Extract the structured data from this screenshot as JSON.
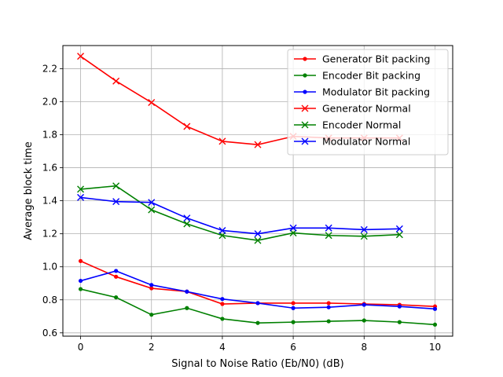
{
  "chart_data": {
    "type": "line",
    "title": "",
    "xlabel": "Signal to Noise Ratio (Eb/N0) (dB)",
    "ylabel": "Average block time",
    "xlim": [
      -0.5,
      10.5
    ],
    "ylim": [
      0.58,
      2.34
    ],
    "xticks": [
      0,
      2,
      4,
      6,
      8,
      10
    ],
    "yticks": [
      0.6,
      0.8,
      1.0,
      1.2,
      1.4,
      1.6,
      1.8,
      2.0,
      2.2
    ],
    "grid": true,
    "legend_position": "top-right",
    "series": [
      {
        "name": "Generator Bit packing",
        "color": "#ff0000",
        "marker": "dot",
        "x": [
          0,
          1,
          2,
          3,
          4,
          5,
          6,
          7,
          8,
          9,
          10
        ],
        "y": [
          1.035,
          0.94,
          0.87,
          0.85,
          0.775,
          0.78,
          0.78,
          0.78,
          0.775,
          0.77,
          0.76
        ]
      },
      {
        "name": "Encoder Bit packing",
        "color": "#008000",
        "marker": "dot",
        "x": [
          0,
          1,
          2,
          3,
          4,
          5,
          6,
          7,
          8,
          9,
          10
        ],
        "y": [
          0.865,
          0.815,
          0.71,
          0.75,
          0.685,
          0.66,
          0.665,
          0.67,
          0.675,
          0.665,
          0.65
        ]
      },
      {
        "name": "Modulator Bit packing",
        "color": "#0000ff",
        "marker": "dot",
        "x": [
          0,
          1,
          2,
          3,
          4,
          5,
          6,
          7,
          8,
          9,
          10
        ],
        "y": [
          0.915,
          0.975,
          0.89,
          0.85,
          0.805,
          0.78,
          0.75,
          0.755,
          0.77,
          0.76,
          0.745
        ]
      },
      {
        "name": "Generator Normal",
        "color": "#ff0000",
        "marker": "x",
        "x": [
          0,
          1,
          2,
          3,
          4,
          5,
          6,
          7,
          8,
          9
        ],
        "y": [
          2.275,
          2.125,
          1.995,
          1.85,
          1.76,
          1.74,
          1.79,
          1.78,
          1.78,
          1.78
        ]
      },
      {
        "name": "Encoder Normal",
        "color": "#008000",
        "marker": "x",
        "x": [
          0,
          1,
          2,
          3,
          4,
          5,
          6,
          7,
          8,
          9
        ],
        "y": [
          1.47,
          1.49,
          1.345,
          1.26,
          1.19,
          1.16,
          1.205,
          1.19,
          1.185,
          1.195
        ]
      },
      {
        "name": "Modulator Normal",
        "color": "#0000ff",
        "marker": "x",
        "x": [
          0,
          1,
          2,
          3,
          4,
          5,
          6,
          7,
          8,
          9
        ],
        "y": [
          1.42,
          1.395,
          1.39,
          1.295,
          1.22,
          1.2,
          1.235,
          1.235,
          1.225,
          1.23
        ]
      }
    ]
  }
}
